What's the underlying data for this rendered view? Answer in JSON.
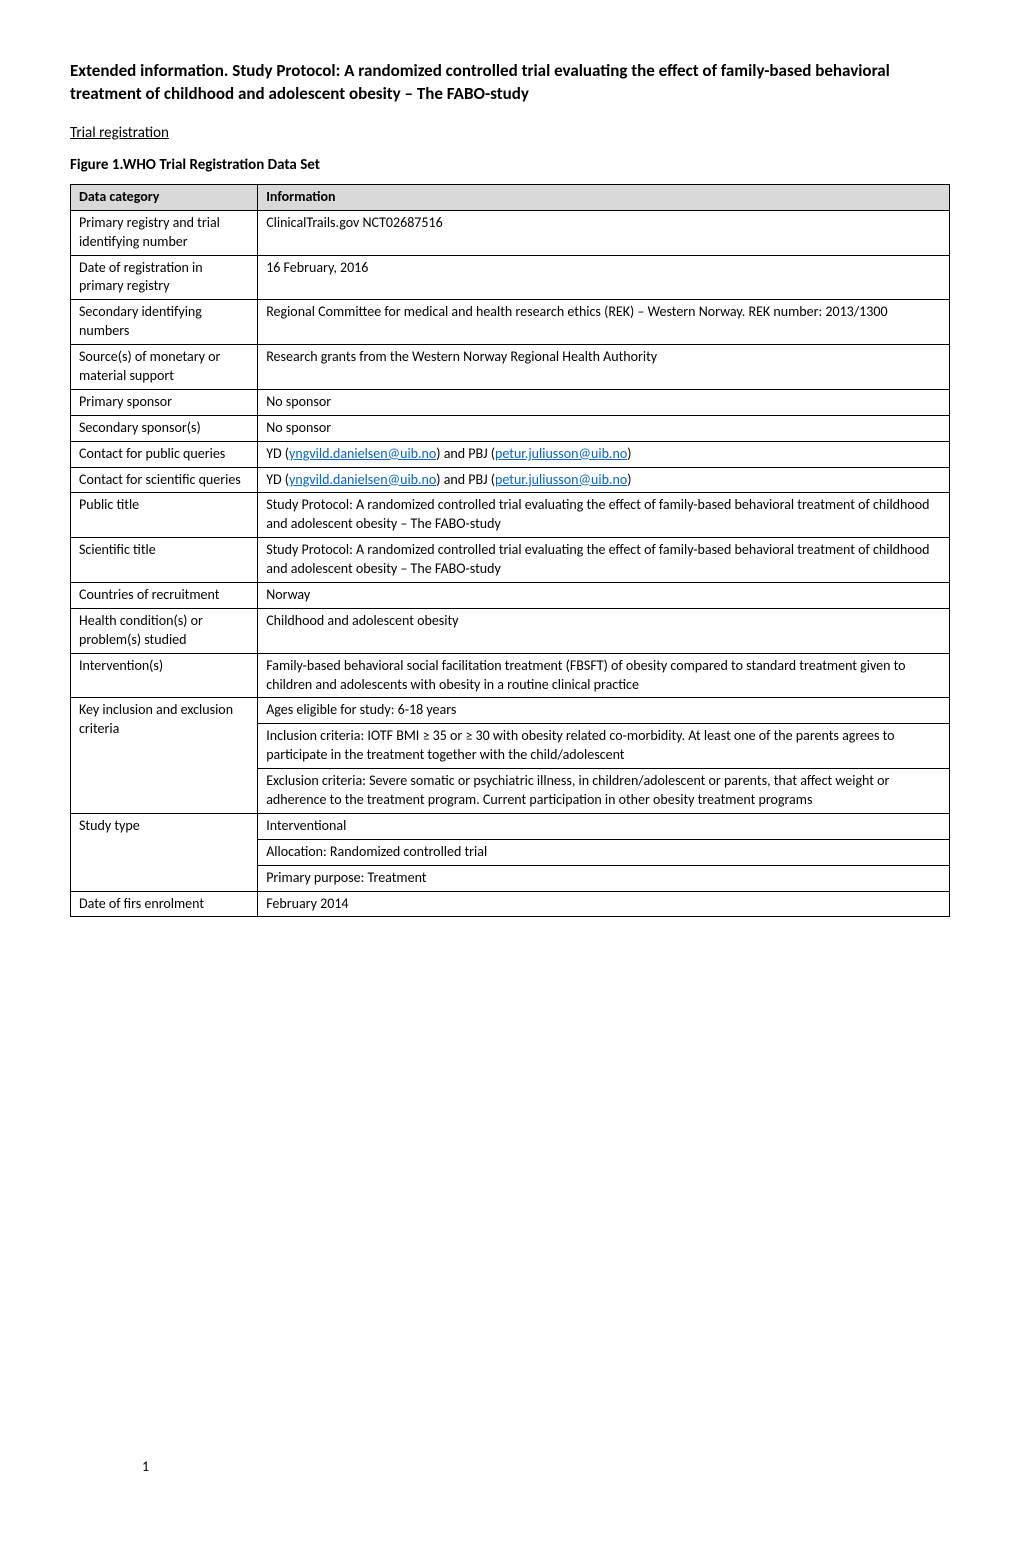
{
  "title": "Extended information. Study Protocol: A randomized controlled trial evaluating the effect of family-based behavioral treatment of childhood and adolescent obesity – The FABO-study",
  "section_heading": "Trial registration",
  "figure_caption": "Figure 1.WHO Trial Registration Data Set",
  "table": {
    "header": {
      "left": "Data category",
      "right": "Information"
    },
    "header_bg": "#d9d9d9",
    "rows": [
      {
        "left": "Primary registry and trial identifying number",
        "right_parts": [
          {
            "t": "ClinicalTrails.gov NCT02687516"
          }
        ]
      },
      {
        "left": "Date of registration in primary registry",
        "right_parts": [
          {
            "t": "16 February, 2016"
          }
        ]
      },
      {
        "left": "Secondary identifying numbers",
        "right_parts": [
          {
            "t": "Regional Committee for medical and health research ethics (REK) – Western Norway. REK number: 2013/1300"
          }
        ]
      },
      {
        "left": "Source(s) of monetary or material support",
        "right_parts": [
          {
            "t": "Research grants from the Western Norway Regional Health Authority"
          }
        ]
      },
      {
        "left": "Primary sponsor",
        "right_parts": [
          {
            "t": "No sponsor"
          }
        ]
      },
      {
        "left": "Secondary sponsor(s)",
        "right_parts": [
          {
            "t": "No sponsor"
          }
        ]
      },
      {
        "left": "Contact for public queries",
        "right_parts": [
          {
            "t": "YD ("
          },
          {
            "link": "yngvild.danielsen@uib.no"
          },
          {
            "t": ") and PBJ ("
          },
          {
            "link": "petur.juliusson@uib.no"
          },
          {
            "t": ")"
          }
        ]
      },
      {
        "left": "Contact for scientific queries",
        "right_parts": [
          {
            "t": "YD ("
          },
          {
            "link": "yngvild.danielsen@uib.no"
          },
          {
            "t": ") and PBJ ("
          },
          {
            "link": "petur.juliusson@uib.no"
          },
          {
            "t": ")"
          }
        ]
      },
      {
        "left": "Public title",
        "right_parts": [
          {
            "t": "Study Protocol: A randomized controlled trial evaluating the effect of family-based behavioral treatment of childhood and adolescent obesity – The FABO-study"
          }
        ]
      },
      {
        "left": "Scientific title",
        "right_parts": [
          {
            "t": "Study Protocol: A randomized controlled trial evaluating the effect of family-based behavioral treatment of childhood and adolescent obesity – The FABO-study"
          }
        ]
      },
      {
        "left": "Countries of recruitment",
        "right_parts": [
          {
            "t": "Norway"
          }
        ]
      },
      {
        "left": "Health condition(s) or problem(s) studied",
        "right_parts": [
          {
            "t": "Childhood and adolescent obesity"
          }
        ]
      },
      {
        "left": "Intervention(s)",
        "right_parts": [
          {
            "t": "Family-based behavioral social facilitation treatment (FBSFT) of obesity compared to standard treatment given to children and adolescents with obesity in a routine clinical practice"
          }
        ]
      },
      {
        "left": "Key inclusion and exclusion criteria",
        "rowspan": 3,
        "right_parts": [
          {
            "t": "Ages eligible for study: 6-18 years"
          }
        ]
      },
      {
        "right_parts": [
          {
            "t": "Inclusion criteria: IOTF BMI ≥ 35 or ≥ 30 with obesity related co-morbidity. At least one of the parents agrees to participate in the treatment together with the child/adolescent"
          }
        ]
      },
      {
        "right_parts": [
          {
            "t": "Exclusion criteria: Severe somatic or psychiatric illness, in children/adolescent or parents, that affect weight or adherence to the treatment program. Current participation in other obesity treatment programs"
          }
        ]
      },
      {
        "left": "Study type",
        "rowspan": 3,
        "right_parts": [
          {
            "t": "Interventional"
          }
        ]
      },
      {
        "right_parts": [
          {
            "t": "Allocation: Randomized controlled trial"
          }
        ]
      },
      {
        "right_parts": [
          {
            "t": "Primary purpose: Treatment"
          }
        ]
      },
      {
        "left": "Date of firs enrolment",
        "right_parts": [
          {
            "t": "February 2014"
          }
        ]
      }
    ]
  },
  "page_number": "1",
  "colors": {
    "page_bg": "#ffffff",
    "text": "#000000",
    "link": "#0563c1",
    "border": "#000000"
  }
}
